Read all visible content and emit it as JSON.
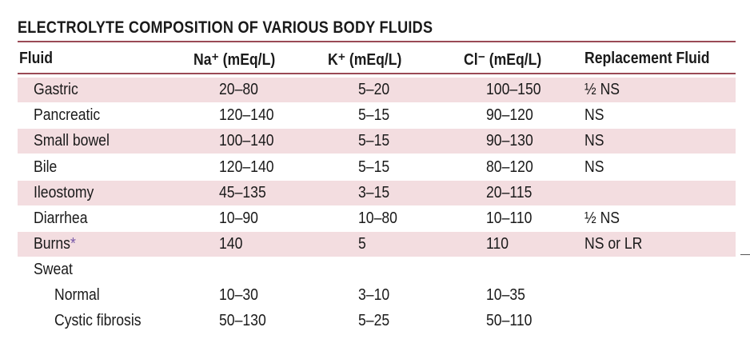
{
  "title": "ELECTROLYTE COMPOSITION OF VARIOUS BODY FLUIDS",
  "headers": {
    "fluid": "Fluid",
    "na": "Na⁺ (mEq/L)",
    "k": "K⁺ (mEq/L)",
    "cl": "Cl⁻ (mEq/L)",
    "replacement": "Replacement Fluid"
  },
  "rows": [
    {
      "fluid": "Gastric",
      "na": "20–80",
      "k": "5–20",
      "cl": "100–150",
      "replacement": "½ NS"
    },
    {
      "fluid": "Pancreatic",
      "na": "120–140",
      "k": "5–15",
      "cl": "90–120",
      "replacement": "NS"
    },
    {
      "fluid": "Small bowel",
      "na": "100–140",
      "k": "5–15",
      "cl": "90–130",
      "replacement": "NS"
    },
    {
      "fluid": "Bile",
      "na": "120–140",
      "k": "5–15",
      "cl": "80–120",
      "replacement": "NS"
    },
    {
      "fluid": "Ileostomy",
      "na": "45–135",
      "k": "3–15",
      "cl": "20–115",
      "replacement": ""
    },
    {
      "fluid": "Diarrhea",
      "na": "10–90",
      "k": "10–80",
      "cl": "10–110",
      "replacement": "½ NS"
    },
    {
      "fluid": "Burns",
      "marker": "*",
      "na": "140",
      "k": "5",
      "cl": "110",
      "replacement": "NS or LR"
    },
    {
      "fluid": "Sweat",
      "na": "",
      "k": "",
      "cl": "",
      "replacement": ""
    },
    {
      "fluid": "Normal",
      "na": "10–30",
      "k": "3–10",
      "cl": "10–35",
      "replacement": ""
    },
    {
      "fluid": "Cystic fibrosis",
      "na": "50–130",
      "k": "5–25",
      "cl": "50–110",
      "replacement": ""
    }
  ],
  "colors": {
    "rule": "#9a4a55",
    "shade": "#f3dde0",
    "asterisk": "#7a5aa8"
  }
}
